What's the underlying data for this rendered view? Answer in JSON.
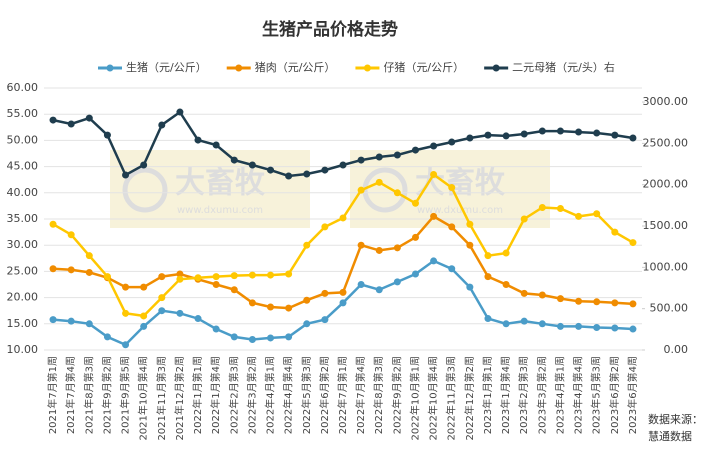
{
  "chart_data": {
    "type": "line",
    "title": "生猪产品价格走势",
    "categories": [
      "2021年7月第1周",
      "2021年7月第4周",
      "2021年8月第3周",
      "2021年9月第2周",
      "2021年9月第5周",
      "2021年10月第4周",
      "2021年11月第3周",
      "2021年12月第2周",
      "2022年1月第1周",
      "2022年1月第4周",
      "2022年2月第3周",
      "2022年3月第2周",
      "2022年4月第1周",
      "2022年4月第4周",
      "2022年5月第3周",
      "2022年6月第2周",
      "2022年7月第1周",
      "2022年7月第4周",
      "2022年8月第3周",
      "2022年9月第2周",
      "2022年10月第1周",
      "2022年10月第4周",
      "2022年11月第3周",
      "2022年12月第2周",
      "2023年1月第1周",
      "2023年1月第4周",
      "2023年2月第3周",
      "2023年3月第2周",
      "2023年4月第1周",
      "2023年4月第4周",
      "2023年5月第3周",
      "2023年6月第2周",
      "2023年6月第4周"
    ],
    "series": [
      {
        "name": "生猪（元/公斤）",
        "color": "#4a9cc8",
        "values": [
          15.8,
          15.5,
          15.0,
          12.5,
          11.0,
          14.5,
          17.5,
          17.0,
          16.0,
          14.0,
          12.5,
          12.0,
          12.3,
          12.5,
          15.0,
          15.8,
          19.0,
          22.5,
          21.5,
          23.0,
          24.5,
          27.0,
          25.5,
          22.0,
          16.0,
          15.0,
          15.5,
          15.0,
          14.5,
          14.5,
          14.3,
          14.2,
          14.0
        ]
      },
      {
        "name": "猪肉（元/公斤）",
        "color": "#f08c00",
        "values": [
          25.5,
          25.3,
          24.8,
          23.8,
          22.0,
          22.0,
          24.0,
          24.5,
          23.5,
          22.5,
          21.5,
          19.0,
          18.2,
          18.0,
          19.5,
          20.8,
          21.0,
          30.0,
          29.0,
          29.5,
          31.5,
          35.5,
          33.5,
          30.0,
          24.0,
          22.5,
          20.8,
          20.5,
          19.8,
          19.3,
          19.2,
          19.0,
          18.8
        ]
      },
      {
        "name": "仔猪（元/公斤）",
        "color": "#ffc700",
        "values": [
          34.0,
          32.0,
          28.0,
          24.0,
          17.0,
          16.5,
          20.0,
          23.5,
          23.8,
          24.0,
          24.2,
          24.3,
          24.3,
          24.5,
          30.0,
          33.5,
          35.2,
          40.5,
          42.0,
          40.0,
          38.0,
          43.5,
          41.0,
          34.0,
          28.0,
          28.5,
          35.0,
          37.2,
          37.0,
          35.5,
          36.0,
          32.5,
          30.5
        ]
      },
      {
        "name": "二元母猪（元/头）右",
        "color": "#1f3d4e",
        "axis": "y2",
        "values": [
          2782,
          2734,
          2806,
          2600,
          2117,
          2238,
          2722,
          2879,
          2540,
          2480,
          2298,
          2238,
          2177,
          2105,
          2129,
          2177,
          2238,
          2298,
          2335,
          2359,
          2419,
          2468,
          2516,
          2565,
          2600,
          2590,
          2613,
          2649,
          2649,
          2637,
          2625,
          2600,
          2565
        ]
      }
    ],
    "ylim": [
      10,
      60
    ],
    "yticks": [
      {
        "value": 10,
        "label": "10.00"
      },
      {
        "value": 15,
        "label": "15.00"
      },
      {
        "value": 20,
        "label": "20.00"
      },
      {
        "value": 25,
        "label": "25.00"
      },
      {
        "value": 30,
        "label": "30.00"
      },
      {
        "value": 35,
        "label": "35.00"
      },
      {
        "value": 40,
        "label": "40.00"
      },
      {
        "value": 45,
        "label": "45.00"
      },
      {
        "value": 50,
        "label": "50.00"
      },
      {
        "value": 55,
        "label": "55.00"
      },
      {
        "value": 60,
        "label": "60.00"
      }
    ],
    "y2lim": [
      0,
      3170
    ],
    "y2ticks": [
      {
        "value": 0,
        "label": "0.00"
      },
      {
        "value": 500,
        "label": "500.00"
      },
      {
        "value": 1000,
        "label": "1000.00"
      },
      {
        "value": 1500,
        "label": "1500.00"
      },
      {
        "value": 2000,
        "label": "2000.00"
      },
      {
        "value": 2500,
        "label": "2500.00"
      },
      {
        "value": 3000,
        "label": "3000.00"
      }
    ],
    "grid": true,
    "legend": "top",
    "watermark": "大畜牧",
    "watermark_url": "www.dxumu.com",
    "source": [
      "数据来源：",
      "慧通数据"
    ]
  }
}
